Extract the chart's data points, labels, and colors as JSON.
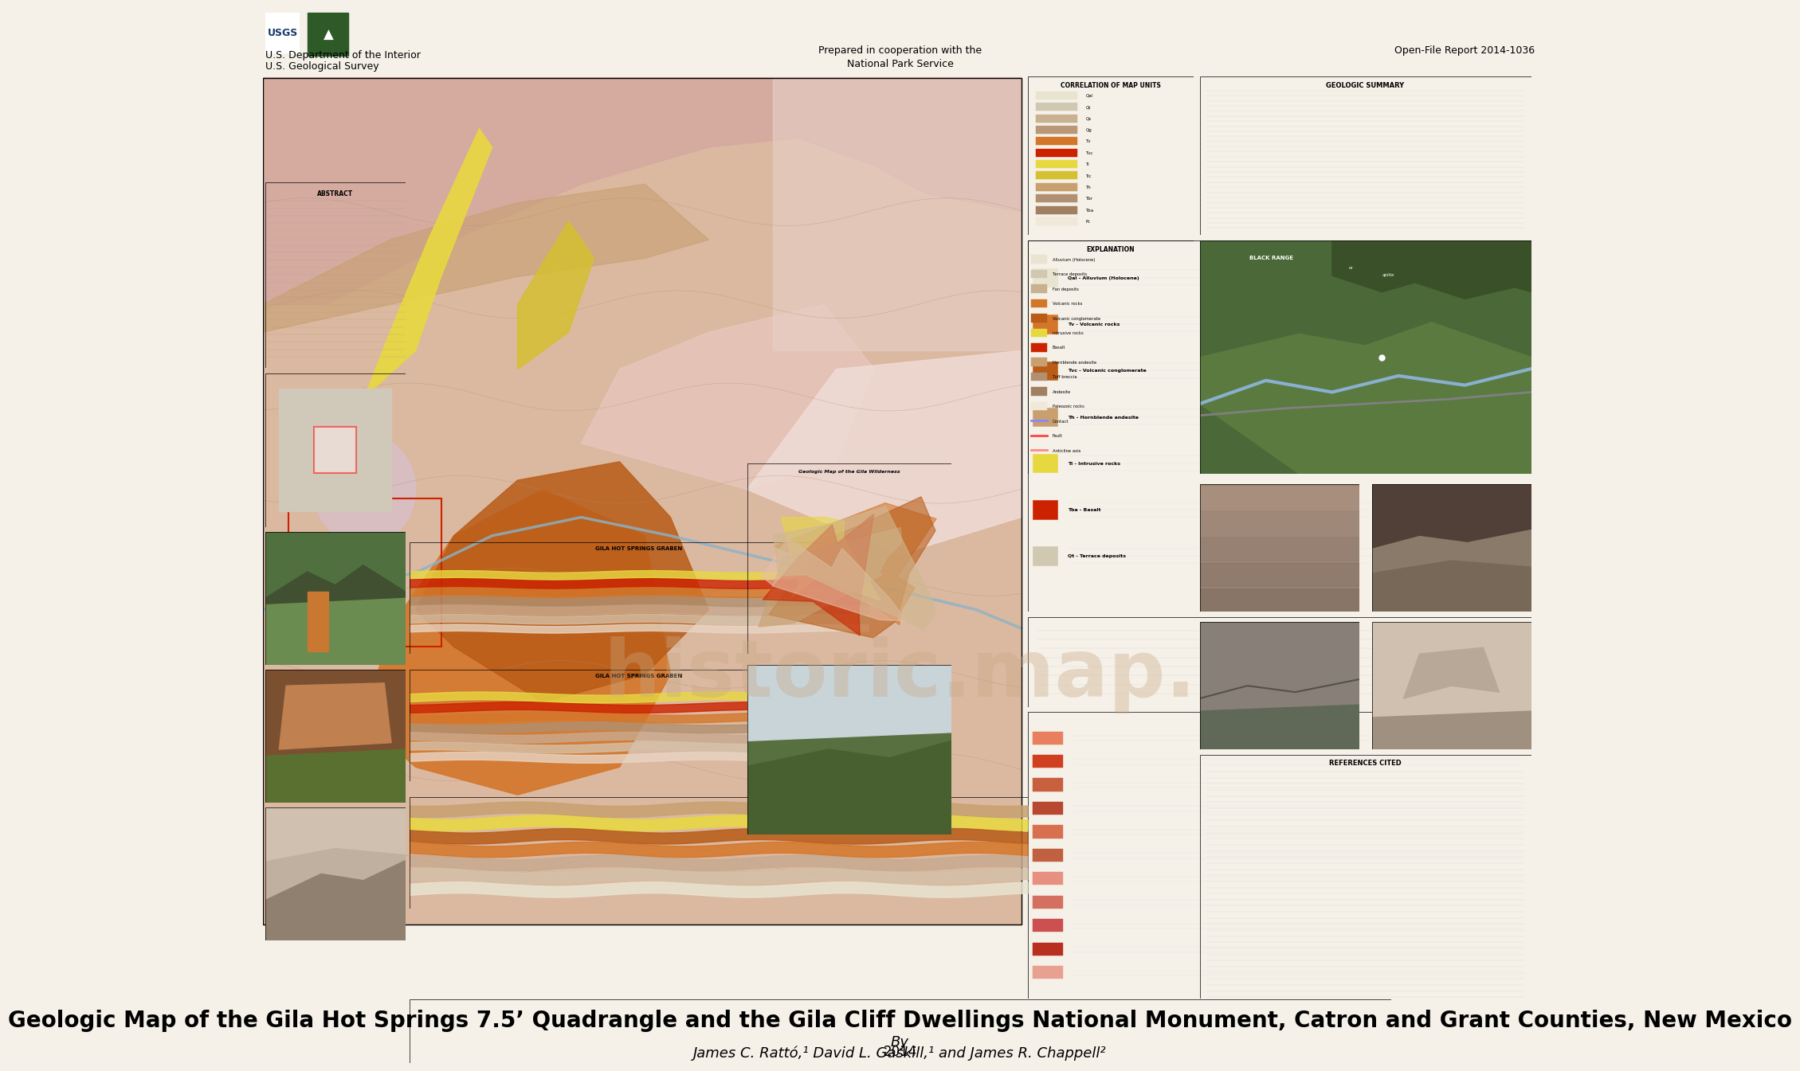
{
  "title": "Geologic Map of the Gila Hot Springs 7.5’ Quadrangle and the Gila Cliff Dwellings National Monument, Catron and Grant Counties, New Mexico",
  "subtitle": "By",
  "authors": "James C. Rattó,¹ David L. Gaskill,¹ and James R. Chappell²",
  "year": "2014",
  "header_text_left1": "U.S. Department of the Interior",
  "header_text_left2": "U.S. Geological Survey",
  "header_center": "Prepared in cooperation with the\nNational Park Service",
  "header_right": "Open-File Report 2014-1036",
  "bg_color": "#f5f0e8",
  "header_bg": "#7fb3c8",
  "map_bg": "#e8ddd0",
  "title_fontsize": 20,
  "author_fontsize": 13,
  "year_fontsize": 12,
  "header_fontsize": 9,
  "watermark_text": "historic.map.",
  "watermark_color": "#c8a882",
  "watermark_alpha": 0.35,
  "watermark_fontsize": 72
}
